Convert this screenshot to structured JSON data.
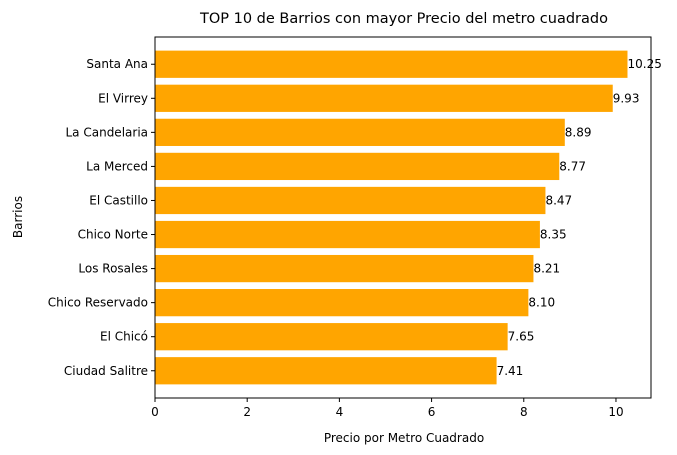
{
  "chart_data": {
    "type": "bar",
    "orientation": "horizontal",
    "title": "TOP 10 de Barrios con mayor Precio del metro cuadrado",
    "xlabel": "Precio por Metro Cuadrado",
    "ylabel": "Barrios",
    "categories": [
      "Santa Ana",
      "El Virrey",
      "La Candelaria",
      "La Merced",
      "El Castillo",
      "Chico Norte",
      "Los Rosales",
      "Chico Reservado",
      "El Chicó",
      "Ciudad Salitre"
    ],
    "values": [
      10.25,
      9.93,
      8.89,
      8.77,
      8.47,
      8.35,
      8.21,
      8.1,
      7.65,
      7.41
    ],
    "value_labels": [
      "10.25",
      "9.93",
      "8.89",
      "8.77",
      "8.47",
      "8.35",
      "8.21",
      "8.10",
      "7.65",
      "7.41"
    ],
    "xticks": [
      0,
      2,
      4,
      6,
      8,
      10
    ],
    "xlim": [
      0,
      10.76
    ],
    "grid": false,
    "bar_color": "#FFA500"
  }
}
